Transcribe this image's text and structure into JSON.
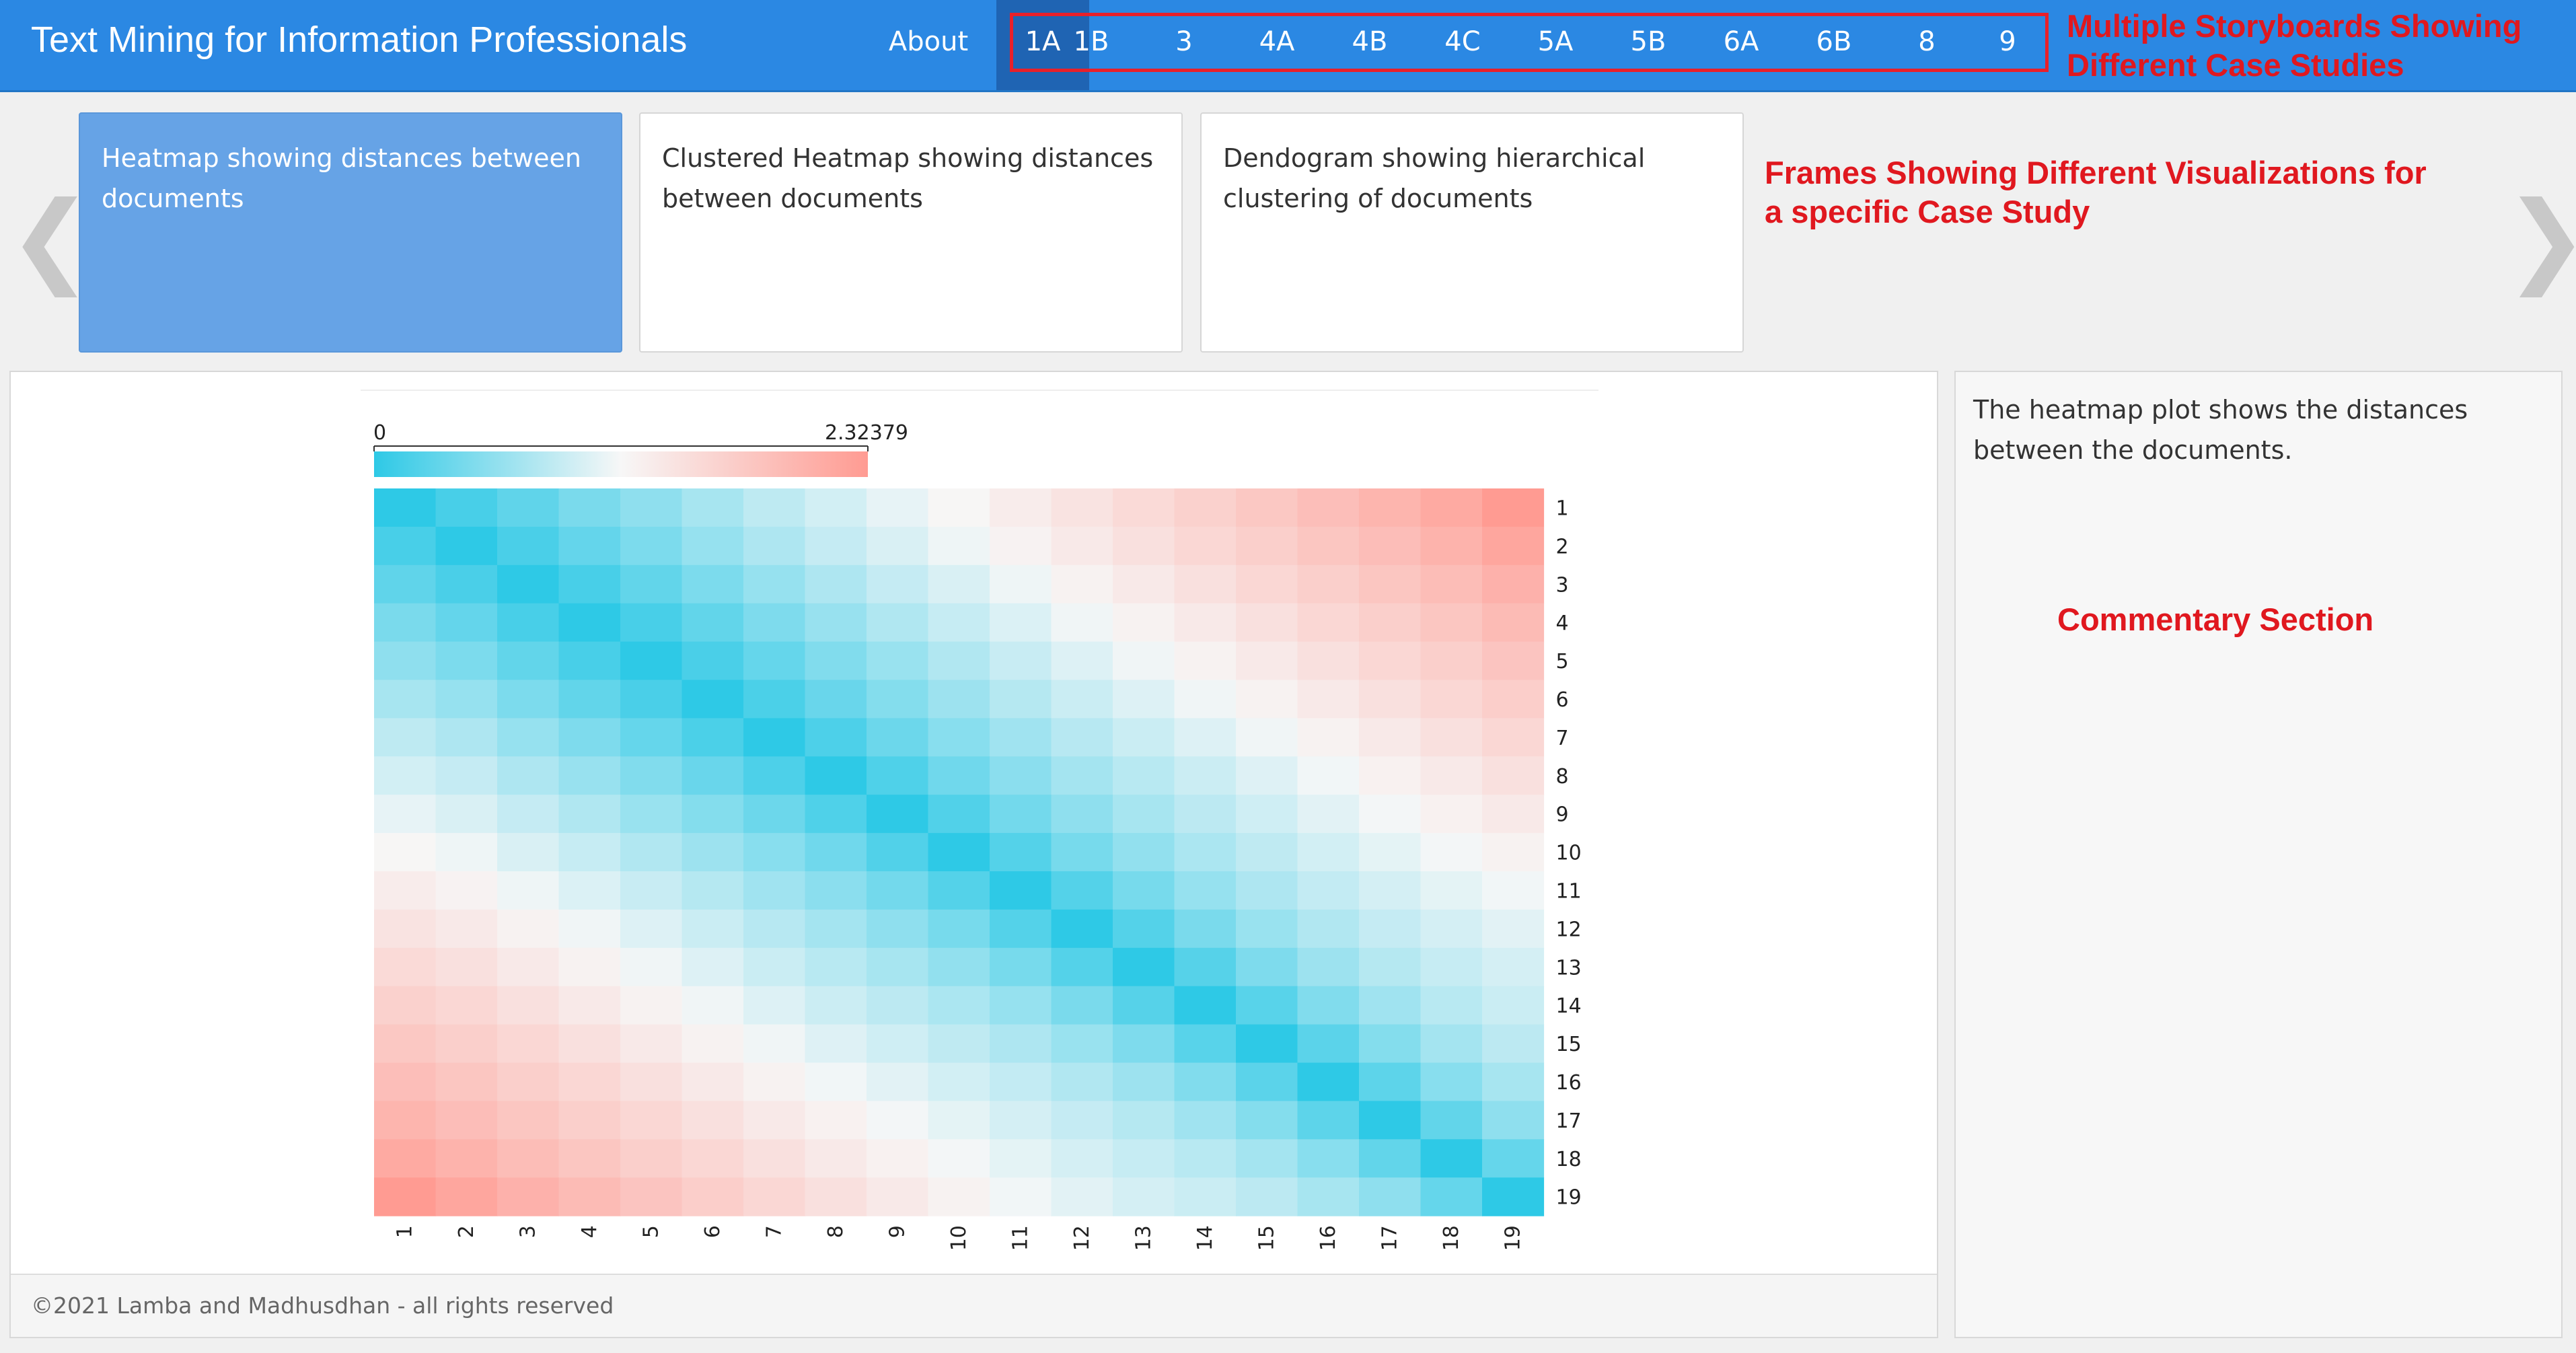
{
  "navbar": {
    "title": "Text Mining for Information Professionals",
    "about_label": "About",
    "storyboard_tabs": [
      "1A",
      "1B",
      "3",
      "4A",
      "4B",
      "4C",
      "5A",
      "5B",
      "6A",
      "6B",
      "8",
      "9"
    ],
    "active_tab": "1A",
    "bg_color": "#2b88e3",
    "active_color": "#1f64b3"
  },
  "annotations": {
    "storyboards_line1": "Multiple Storyboards Showing",
    "storyboards_line2": "Different Case Studies",
    "frames_line1": "Frames Showing Different Visualizations for",
    "frames_line2": "a specific Case Study",
    "commentary": "Commentary Section",
    "color": "#e0181f"
  },
  "frames": {
    "prev_icon": "chevron-left-icon",
    "next_icon": "chevron-right-icon",
    "items": [
      {
        "label": "Heatmap showing distances between documents",
        "active": true
      },
      {
        "label": "Clustered Heatmap showing distances between documents",
        "active": false
      },
      {
        "label": "Dendogram showing hierarchical clustering of documents",
        "active": false
      }
    ]
  },
  "commentary": {
    "text": "The heatmap plot shows the distances between the documents."
  },
  "footer": {
    "text": "©2021 Lamba and Madhusdhan - all rights reserved"
  },
  "chart_data": {
    "type": "heatmap",
    "title": "",
    "xlabel": "",
    "ylabel": "",
    "x_categories": [
      "1",
      "2",
      "3",
      "4",
      "5",
      "6",
      "7",
      "8",
      "9",
      "10",
      "11",
      "12",
      "13",
      "14",
      "15",
      "16",
      "17",
      "18",
      "19"
    ],
    "y_categories": [
      "1",
      "2",
      "3",
      "4",
      "5",
      "6",
      "7",
      "8",
      "9",
      "10",
      "11",
      "12",
      "13",
      "14",
      "15",
      "16",
      "17",
      "18",
      "19"
    ],
    "value_range": [
      0,
      2.32379
    ],
    "colorbar": {
      "min_label": "0",
      "max_label": "2.32379"
    },
    "colors": {
      "low": "#2ec9e6",
      "mid": "#f7f7f7",
      "high": "#ff9b92"
    },
    "values": [
      [
        0,
        0.15,
        0.29,
        0.44,
        0.56,
        0.7,
        0.83,
        0.95,
        1.07,
        1.18,
        1.3,
        1.42,
        1.53,
        1.64,
        1.76,
        1.88,
        2.0,
        2.14,
        2.32
      ],
      [
        0.15,
        0,
        0.16,
        0.31,
        0.45,
        0.6,
        0.74,
        0.87,
        0.99,
        1.11,
        1.22,
        1.34,
        1.45,
        1.56,
        1.67,
        1.78,
        1.89,
        2.02,
        2.18
      ],
      [
        0.29,
        0.16,
        0,
        0.15,
        0.3,
        0.45,
        0.6,
        0.74,
        0.87,
        0.99,
        1.11,
        1.23,
        1.34,
        1.45,
        1.56,
        1.67,
        1.78,
        1.9,
        2.04
      ],
      [
        0.44,
        0.31,
        0.15,
        0,
        0.15,
        0.3,
        0.46,
        0.61,
        0.75,
        0.88,
        1.0,
        1.12,
        1.23,
        1.34,
        1.45,
        1.56,
        1.67,
        1.78,
        1.92
      ],
      [
        0.56,
        0.45,
        0.3,
        0.15,
        0,
        0.16,
        0.32,
        0.48,
        0.62,
        0.76,
        0.89,
        1.01,
        1.12,
        1.23,
        1.34,
        1.45,
        1.56,
        1.67,
        1.8
      ],
      [
        0.7,
        0.6,
        0.45,
        0.3,
        0.16,
        0,
        0.17,
        0.34,
        0.5,
        0.64,
        0.78,
        0.9,
        1.01,
        1.12,
        1.23,
        1.34,
        1.45,
        1.56,
        1.68
      ],
      [
        0.83,
        0.74,
        0.6,
        0.46,
        0.32,
        0.17,
        0,
        0.18,
        0.36,
        0.52,
        0.66,
        0.79,
        0.9,
        1.01,
        1.12,
        1.23,
        1.34,
        1.45,
        1.56
      ],
      [
        0.95,
        0.87,
        0.74,
        0.61,
        0.48,
        0.34,
        0.18,
        0,
        0.19,
        0.38,
        0.54,
        0.68,
        0.8,
        0.91,
        1.02,
        1.13,
        1.24,
        1.34,
        1.45
      ],
      [
        1.07,
        0.99,
        0.87,
        0.75,
        0.62,
        0.5,
        0.36,
        0.19,
        0,
        0.2,
        0.4,
        0.56,
        0.7,
        0.82,
        0.93,
        1.04,
        1.14,
        1.24,
        1.34
      ],
      [
        1.18,
        1.11,
        0.99,
        0.88,
        0.76,
        0.64,
        0.52,
        0.38,
        0.2,
        0,
        0.22,
        0.42,
        0.58,
        0.72,
        0.84,
        0.95,
        1.05,
        1.14,
        1.23
      ],
      [
        1.3,
        1.22,
        1.11,
        1.0,
        0.89,
        0.78,
        0.66,
        0.54,
        0.4,
        0.22,
        0,
        0.22,
        0.42,
        0.6,
        0.74,
        0.86,
        0.96,
        1.05,
        1.13
      ],
      [
        1.42,
        1.34,
        1.23,
        1.12,
        1.01,
        0.9,
        0.79,
        0.68,
        0.56,
        0.42,
        0.22,
        0,
        0.22,
        0.44,
        0.62,
        0.76,
        0.87,
        0.96,
        1.04
      ],
      [
        1.53,
        1.45,
        1.34,
        1.23,
        1.12,
        1.01,
        0.9,
        0.8,
        0.7,
        0.58,
        0.42,
        0.22,
        0,
        0.23,
        0.46,
        0.64,
        0.78,
        0.88,
        0.96
      ],
      [
        1.64,
        1.56,
        1.45,
        1.34,
        1.23,
        1.12,
        1.01,
        0.91,
        0.82,
        0.72,
        0.6,
        0.44,
        0.23,
        0,
        0.24,
        0.48,
        0.66,
        0.8,
        0.9
      ],
      [
        1.76,
        1.67,
        1.56,
        1.45,
        1.34,
        1.23,
        1.12,
        1.02,
        0.93,
        0.84,
        0.74,
        0.62,
        0.46,
        0.24,
        0,
        0.26,
        0.5,
        0.68,
        0.82
      ],
      [
        1.88,
        1.78,
        1.67,
        1.56,
        1.45,
        1.34,
        1.23,
        1.13,
        1.04,
        0.95,
        0.86,
        0.76,
        0.64,
        0.48,
        0.26,
        0,
        0.27,
        0.52,
        0.7
      ],
      [
        2.0,
        1.89,
        1.78,
        1.67,
        1.56,
        1.45,
        1.34,
        1.24,
        1.14,
        1.05,
        0.96,
        0.87,
        0.78,
        0.66,
        0.5,
        0.27,
        0,
        0.3,
        0.56
      ],
      [
        2.14,
        2.02,
        1.9,
        1.78,
        1.67,
        1.56,
        1.45,
        1.34,
        1.24,
        1.14,
        1.05,
        0.96,
        0.88,
        0.8,
        0.68,
        0.52,
        0.3,
        0,
        0.32
      ],
      [
        2.32,
        2.18,
        2.04,
        1.92,
        1.8,
        1.68,
        1.56,
        1.45,
        1.34,
        1.23,
        1.13,
        1.04,
        0.96,
        0.9,
        0.82,
        0.7,
        0.56,
        0.32,
        0
      ]
    ]
  }
}
